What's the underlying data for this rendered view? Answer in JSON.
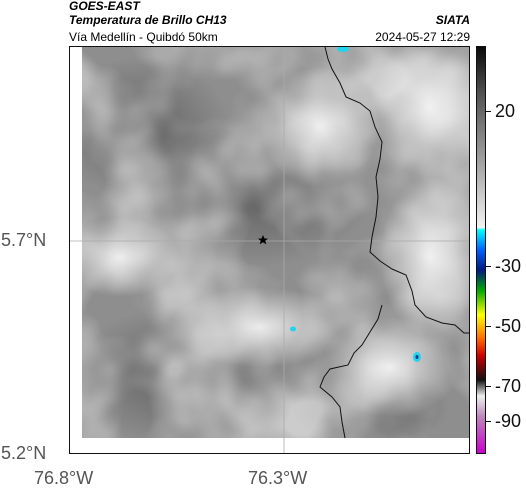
{
  "header": {
    "source": "GOES-EAST",
    "product": "Temperatura de Brillo CH13",
    "organization": "SIATA",
    "region": "Vía Medellín - Quibdó 50km",
    "timestamp": "2024-05-27 12:29"
  },
  "axes": {
    "lat_labels": [
      "5.7°N",
      "5.2°N"
    ],
    "lon_labels": [
      "76.8°W",
      "76.3°W"
    ]
  },
  "colorbar": {
    "labels": [
      "20",
      "-30",
      "-50",
      "-70",
      "-90"
    ]
  },
  "map": {
    "marker": "star-marker",
    "colors": {
      "cold_cloud": "#22d3ee",
      "coastline": "#111111"
    }
  }
}
